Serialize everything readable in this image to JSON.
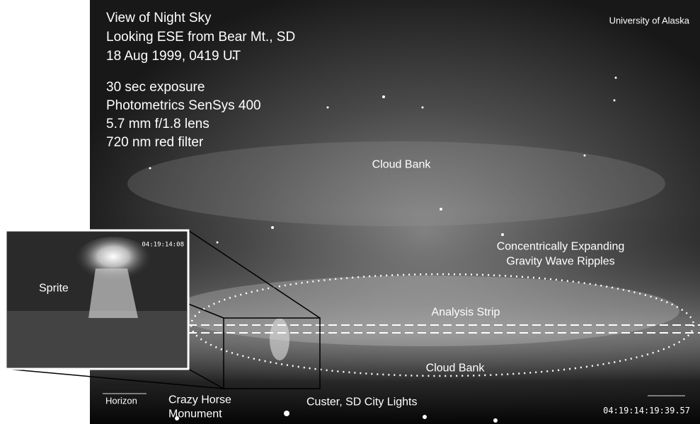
{
  "caption": {
    "title": "View of Night Sky",
    "location": "Looking ESE from Bear Mt., SD",
    "date": "18 Aug 1999, 0419 UT"
  },
  "camera": [
    "30 sec exposure",
    "Photometrics SenSys 400",
    "5.7 mm f/1.8 lens",
    "720 nm red filter"
  ],
  "credit": "University of Alaska",
  "labels": {
    "cloud_bank_upper": "Cloud Bank",
    "ripples": [
      "Concentrically Expanding",
      "Gravity Wave Ripples"
    ],
    "analysis_strip": "Analysis Strip",
    "cloud_bank_lower": "Cloud Bank",
    "horizon": "Horizon",
    "monument": [
      "Crazy Horse",
      "Monument"
    ],
    "city_lights": "Custer, SD City Lights"
  },
  "inset": {
    "label": "Sprite",
    "timestamp": "04:19:14:08"
  },
  "timestamp": "04:19:14:19:39.57"
}
